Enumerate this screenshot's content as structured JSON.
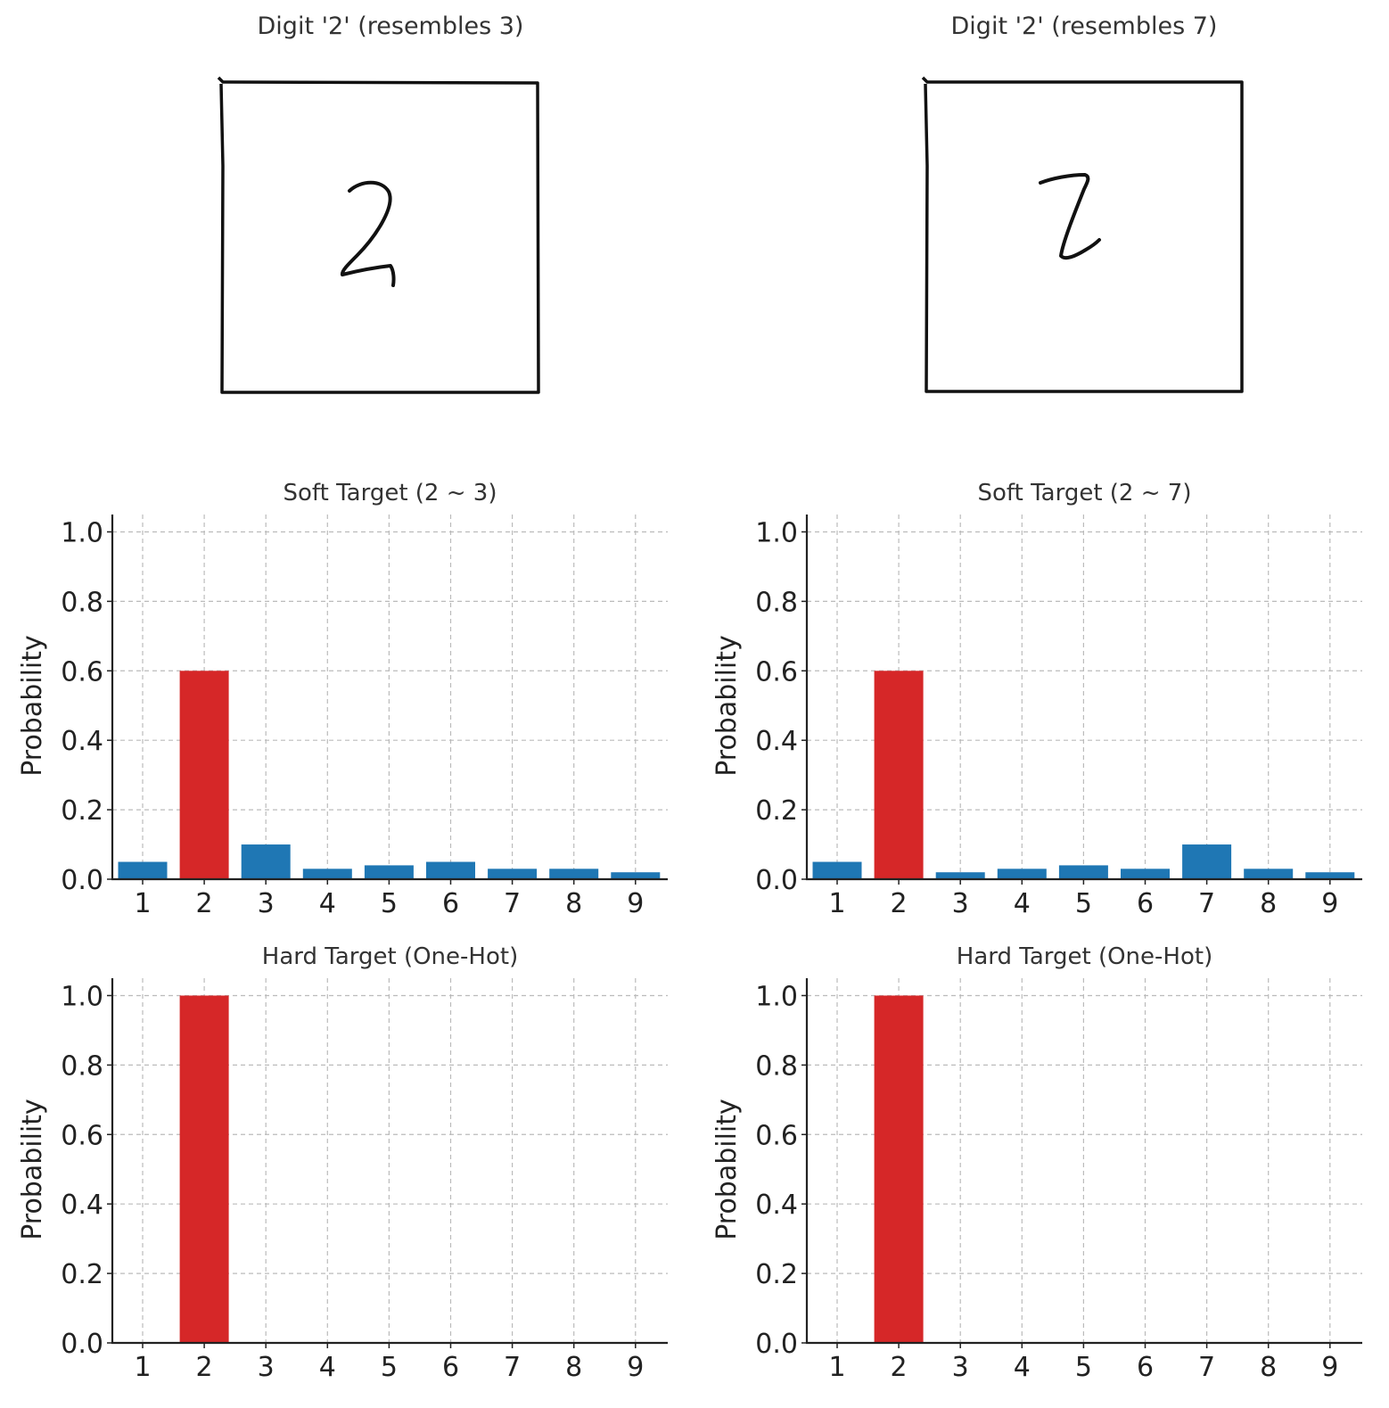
{
  "images": [
    {
      "title": "Digit '2' (resembles 3)",
      "glyph": "digit-2-handwritten-icon"
    },
    {
      "title": "Digit '2' (resembles 7)",
      "glyph": "digit-2-handwritten-icon"
    }
  ],
  "colors": {
    "highlight": "#d62728",
    "other": "#1f77b4",
    "grid": "#bbbbbb",
    "axis": "#222222"
  },
  "chart_data": [
    {
      "type": "bar",
      "title": "Soft Target (2 ~ 3)",
      "xlabel": "",
      "ylabel": "Probability",
      "categories": [
        "1",
        "2",
        "3",
        "4",
        "5",
        "6",
        "7",
        "8",
        "9"
      ],
      "values": [
        0.05,
        0.6,
        0.1,
        0.03,
        0.04,
        0.05,
        0.03,
        0.03,
        0.02
      ],
      "highlight_index": 1,
      "ylim": [
        0,
        1.05
      ],
      "yticks": [
        "0.0",
        "0.2",
        "0.4",
        "0.6",
        "0.8",
        "1.0"
      ],
      "grid": true
    },
    {
      "type": "bar",
      "title": "Soft Target (2 ~ 7)",
      "xlabel": "",
      "ylabel": "Probability",
      "categories": [
        "1",
        "2",
        "3",
        "4",
        "5",
        "6",
        "7",
        "8",
        "9"
      ],
      "values": [
        0.05,
        0.6,
        0.02,
        0.03,
        0.04,
        0.03,
        0.1,
        0.03,
        0.02
      ],
      "highlight_index": 1,
      "ylim": [
        0,
        1.05
      ],
      "yticks": [
        "0.0",
        "0.2",
        "0.4",
        "0.6",
        "0.8",
        "1.0"
      ],
      "grid": true
    },
    {
      "type": "bar",
      "title": "Hard Target (One-Hot)",
      "xlabel": "",
      "ylabel": "Probability",
      "categories": [
        "1",
        "2",
        "3",
        "4",
        "5",
        "6",
        "7",
        "8",
        "9"
      ],
      "values": [
        0,
        1.0,
        0,
        0,
        0,
        0,
        0,
        0,
        0
      ],
      "highlight_index": 1,
      "ylim": [
        0,
        1.05
      ],
      "yticks": [
        "0.0",
        "0.2",
        "0.4",
        "0.6",
        "0.8",
        "1.0"
      ],
      "grid": true
    },
    {
      "type": "bar",
      "title": "Hard Target (One-Hot)",
      "xlabel": "",
      "ylabel": "Probability",
      "categories": [
        "1",
        "2",
        "3",
        "4",
        "5",
        "6",
        "7",
        "8",
        "9"
      ],
      "values": [
        0,
        1.0,
        0,
        0,
        0,
        0,
        0,
        0,
        0
      ],
      "highlight_index": 1,
      "ylim": [
        0,
        1.05
      ],
      "yticks": [
        "0.0",
        "0.2",
        "0.4",
        "0.6",
        "0.8",
        "1.0"
      ],
      "grid": true
    }
  ]
}
